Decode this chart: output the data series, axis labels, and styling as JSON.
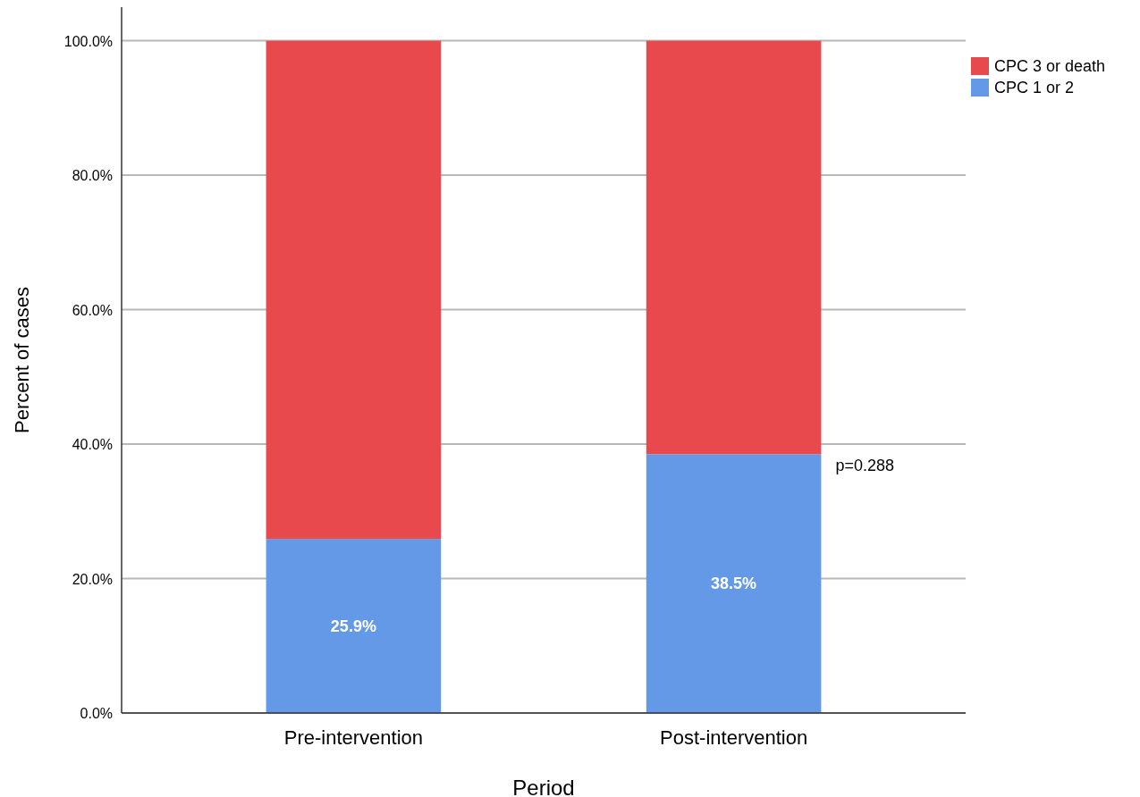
{
  "chart_data": {
    "type": "bar",
    "stacked": true,
    "xlabel": "Period",
    "ylabel": "Percent of cases",
    "categories": [
      "Pre-intervention",
      "Post-intervention"
    ],
    "series": [
      {
        "name": "CPC 1 or 2",
        "color": "#6399e6",
        "values": [
          25.9,
          38.5
        ],
        "value_labels": [
          "25.9%",
          "38.5%"
        ]
      },
      {
        "name": "CPC 3 or death",
        "color": "#e8494d",
        "values": [
          74.1,
          61.5
        ]
      }
    ],
    "ylim": [
      0,
      105
    ],
    "yticks": [
      {
        "value": 0,
        "label": "0.0%"
      },
      {
        "value": 20,
        "label": "20.0%"
      },
      {
        "value": 40,
        "label": "40.0%"
      },
      {
        "value": 60,
        "label": "60.0%"
      },
      {
        "value": 80,
        "label": "80.0%"
      },
      {
        "value": 100,
        "label": "100.0%"
      }
    ],
    "grid": "y",
    "legend": "right",
    "annotations": [
      "p=0.288"
    ]
  }
}
